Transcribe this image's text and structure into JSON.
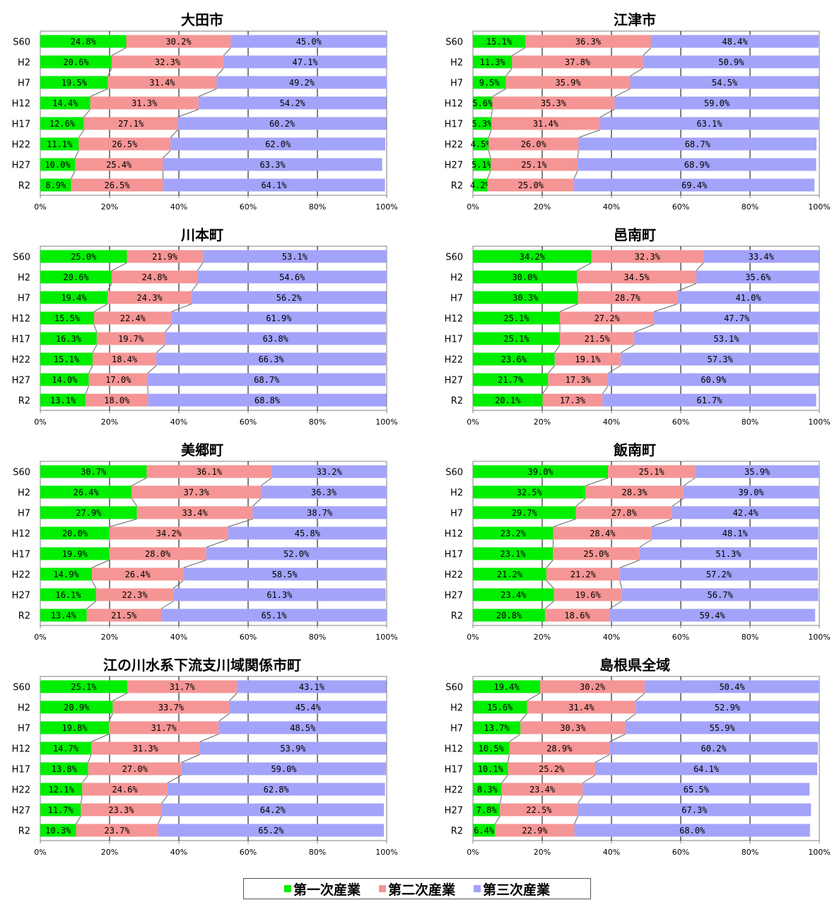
{
  "colors": {
    "primary": "#00ee00",
    "secondary": "#f59595",
    "tertiary": "#a3a3fa",
    "axis": "#808080"
  },
  "legend": {
    "primary": "第一次産業",
    "secondary": "第二次産業",
    "tertiary": "第三次産業"
  },
  "chart_data": [
    {
      "type": "bar",
      "orientation": "horizontal",
      "stacked": true,
      "title": "大田市",
      "categories": [
        "S60",
        "H2",
        "H7",
        "H12",
        "H17",
        "H22",
        "H27",
        "R2"
      ],
      "x_ticks": [
        "0%",
        "20%",
        "40%",
        "60%",
        "80%",
        "100%"
      ],
      "xlim": [
        0,
        100
      ],
      "series": [
        {
          "name": "第一次産業",
          "values": [
            24.8,
            20.6,
            19.5,
            14.4,
            12.6,
            11.1,
            10.0,
            8.9
          ]
        },
        {
          "name": "第二次産業",
          "values": [
            30.2,
            32.3,
            31.4,
            31.3,
            27.1,
            26.5,
            25.4,
            26.5
          ]
        },
        {
          "name": "第三次産業",
          "values": [
            45.0,
            47.1,
            49.2,
            54.2,
            60.2,
            62.0,
            63.3,
            64.1
          ]
        }
      ]
    },
    {
      "type": "bar",
      "orientation": "horizontal",
      "stacked": true,
      "title": "江津市",
      "categories": [
        "S60",
        "H2",
        "H7",
        "H12",
        "H17",
        "H22",
        "H27",
        "R2"
      ],
      "x_ticks": [
        "0%",
        "20%",
        "40%",
        "60%",
        "80%",
        "100%"
      ],
      "xlim": [
        0,
        100
      ],
      "series": [
        {
          "name": "第一次産業",
          "values": [
            15.1,
            11.3,
            9.5,
            5.6,
            5.3,
            4.5,
            5.1,
            4.2
          ]
        },
        {
          "name": "第二次産業",
          "values": [
            36.3,
            37.8,
            35.9,
            35.3,
            31.4,
            26.0,
            25.1,
            25.0
          ]
        },
        {
          "name": "第三次産業",
          "values": [
            48.4,
            50.9,
            54.5,
            59.0,
            63.1,
            68.7,
            68.9,
            69.4
          ]
        }
      ]
    },
    {
      "type": "bar",
      "orientation": "horizontal",
      "stacked": true,
      "title": "川本町",
      "categories": [
        "S60",
        "H2",
        "H7",
        "H12",
        "H17",
        "H22",
        "H27",
        "R2"
      ],
      "x_ticks": [
        "0%",
        "20%",
        "40%",
        "60%",
        "80%",
        "100%"
      ],
      "xlim": [
        0,
        100
      ],
      "series": [
        {
          "name": "第一次産業",
          "values": [
            25.0,
            20.6,
            19.4,
            15.5,
            16.3,
            15.1,
            14.0,
            13.1
          ]
        },
        {
          "name": "第二次産業",
          "values": [
            21.9,
            24.8,
            24.3,
            22.4,
            19.7,
            18.4,
            17.0,
            18.0
          ]
        },
        {
          "name": "第三次産業",
          "values": [
            53.1,
            54.6,
            56.2,
            61.9,
            63.8,
            66.3,
            68.7,
            68.8
          ]
        }
      ]
    },
    {
      "type": "bar",
      "orientation": "horizontal",
      "stacked": true,
      "title": "邑南町",
      "categories": [
        "S60",
        "H2",
        "H7",
        "H12",
        "H17",
        "H22",
        "H27",
        "R2"
      ],
      "x_ticks": [
        "0%",
        "20%",
        "40%",
        "60%",
        "80%",
        "100%"
      ],
      "xlim": [
        0,
        100
      ],
      "series": [
        {
          "name": "第一次産業",
          "values": [
            34.2,
            30.0,
            30.3,
            25.1,
            25.1,
            23.6,
            21.7,
            20.1
          ]
        },
        {
          "name": "第二次産業",
          "values": [
            32.3,
            34.5,
            28.7,
            27.2,
            21.5,
            19.1,
            17.3,
            17.3
          ]
        },
        {
          "name": "第三次産業",
          "values": [
            33.4,
            35.6,
            41.0,
            47.7,
            53.1,
            57.3,
            60.9,
            61.7
          ]
        }
      ]
    },
    {
      "type": "bar",
      "orientation": "horizontal",
      "stacked": true,
      "title": "美郷町",
      "categories": [
        "S60",
        "H2",
        "H7",
        "H12",
        "H17",
        "H22",
        "H27",
        "R2"
      ],
      "x_ticks": [
        "0%",
        "20%",
        "40%",
        "60%",
        "80%",
        "100%"
      ],
      "xlim": [
        0,
        100
      ],
      "series": [
        {
          "name": "第一次産業",
          "values": [
            30.7,
            26.4,
            27.9,
            20.0,
            19.9,
            14.9,
            16.1,
            13.4
          ]
        },
        {
          "name": "第二次産業",
          "values": [
            36.1,
            37.3,
            33.4,
            34.2,
            28.0,
            26.4,
            22.3,
            21.5
          ]
        },
        {
          "name": "第三次産業",
          "values": [
            33.2,
            36.3,
            38.7,
            45.8,
            52.0,
            58.5,
            61.3,
            65.1
          ]
        }
      ]
    },
    {
      "type": "bar",
      "orientation": "horizontal",
      "stacked": true,
      "title": "飯南町",
      "categories": [
        "S60",
        "H2",
        "H7",
        "H12",
        "H17",
        "H22",
        "H27",
        "R2"
      ],
      "x_ticks": [
        "0%",
        "20%",
        "40%",
        "60%",
        "80%",
        "100%"
      ],
      "xlim": [
        0,
        100
      ],
      "series": [
        {
          "name": "第一次産業",
          "values": [
            39.0,
            32.5,
            29.7,
            23.2,
            23.1,
            21.2,
            23.4,
            20.8
          ]
        },
        {
          "name": "第二次産業",
          "values": [
            25.1,
            28.3,
            27.8,
            28.4,
            25.0,
            21.2,
            19.6,
            18.6
          ]
        },
        {
          "name": "第三次産業",
          "values": [
            35.9,
            39.0,
            42.4,
            48.1,
            51.3,
            57.2,
            56.7,
            59.4
          ]
        }
      ]
    },
    {
      "type": "bar",
      "orientation": "horizontal",
      "stacked": true,
      "title": "江の川水系下流支川域関係市町",
      "categories": [
        "S60",
        "H2",
        "H7",
        "H12",
        "H17",
        "H22",
        "H27",
        "R2"
      ],
      "x_ticks": [
        "0%",
        "20%",
        "40%",
        "60%",
        "80%",
        "100%"
      ],
      "xlim": [
        0,
        100
      ],
      "series": [
        {
          "name": "第一次産業",
          "values": [
            25.1,
            20.9,
            19.8,
            14.7,
            13.8,
            12.1,
            11.7,
            10.3
          ]
        },
        {
          "name": "第二次産業",
          "values": [
            31.7,
            33.7,
            31.7,
            31.3,
            27.0,
            24.6,
            23.3,
            23.7
          ]
        },
        {
          "name": "第三次産業",
          "values": [
            43.1,
            45.4,
            48.5,
            53.9,
            59.0,
            62.8,
            64.2,
            65.2
          ]
        }
      ]
    },
    {
      "type": "bar",
      "orientation": "horizontal",
      "stacked": true,
      "title": "島根県全域",
      "categories": [
        "S60",
        "H2",
        "H7",
        "H12",
        "H17",
        "H22",
        "H27",
        "R2"
      ],
      "x_ticks": [
        "0%",
        "20%",
        "40%",
        "60%",
        "80%",
        "100%"
      ],
      "xlim": [
        0,
        100
      ],
      "series": [
        {
          "name": "第一次産業",
          "values": [
            19.4,
            15.6,
            13.7,
            10.5,
            10.1,
            8.3,
            7.8,
            6.4
          ]
        },
        {
          "name": "第二次産業",
          "values": [
            30.2,
            31.4,
            30.3,
            28.9,
            25.2,
            23.4,
            22.5,
            22.9
          ]
        },
        {
          "name": "第三次産業",
          "values": [
            50.4,
            52.9,
            55.9,
            60.2,
            64.1,
            65.5,
            67.3,
            68.0
          ]
        }
      ]
    }
  ]
}
